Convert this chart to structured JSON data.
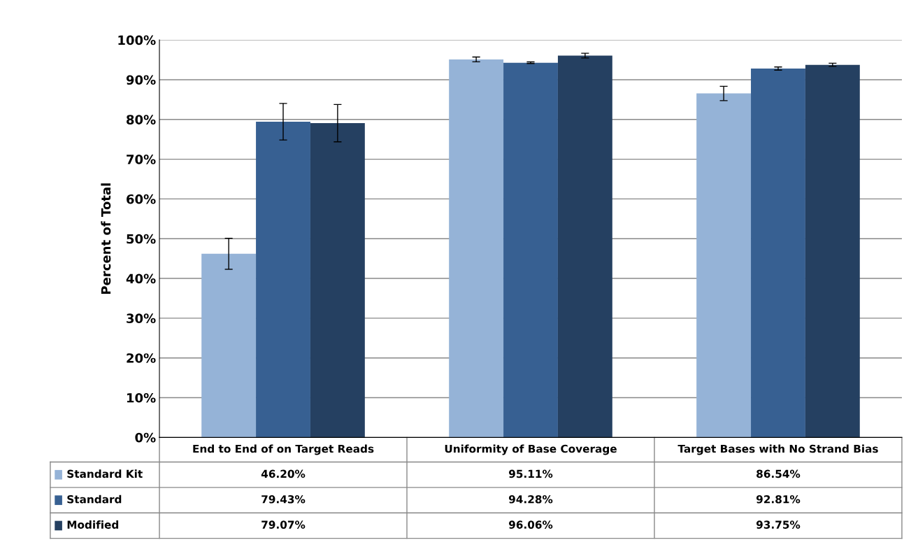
{
  "chart_data": {
    "type": "bar",
    "ylabel": "Percent of Total",
    "categories": [
      "End to End of on Target Reads",
      "Uniformity of Base Coverage",
      "Target Bases with No Strand Bias"
    ],
    "series": [
      {
        "name": "Standard Kit",
        "color": "#95b3d7",
        "values": [
          46.2,
          95.11,
          86.54
        ],
        "errors": [
          3.9,
          0.6,
          1.8
        ],
        "value_labels": [
          "46.20%",
          "95.11%",
          "86.54%"
        ]
      },
      {
        "name": "Standard",
        "color": "#376092",
        "values": [
          79.43,
          94.28,
          92.81
        ],
        "errors": [
          4.6,
          0.2,
          0.4
        ],
        "value_labels": [
          "79.43%",
          "94.28%",
          "92.81%"
        ]
      },
      {
        "name": "Modified",
        "color": "#254061",
        "values": [
          79.07,
          96.06,
          93.75
        ],
        "errors": [
          4.7,
          0.6,
          0.4
        ],
        "value_labels": [
          "79.07%",
          "96.06%",
          "93.75%"
        ]
      }
    ],
    "ylim": [
      0,
      100
    ],
    "yticks": [
      {
        "value": 0,
        "label": "0%"
      },
      {
        "value": 10,
        "label": "10%"
      },
      {
        "value": 20,
        "label": "20%"
      },
      {
        "value": 30,
        "label": "30%"
      },
      {
        "value": 40,
        "label": "40%"
      },
      {
        "value": 50,
        "label": "50%"
      },
      {
        "value": 60,
        "label": "60%"
      },
      {
        "value": 70,
        "label": "70%"
      },
      {
        "value": 80,
        "label": "80%"
      },
      {
        "value": 90,
        "label": "90%"
      },
      {
        "value": 100,
        "label": "100%"
      }
    ],
    "grid": "y",
    "legend": "bottom"
  }
}
